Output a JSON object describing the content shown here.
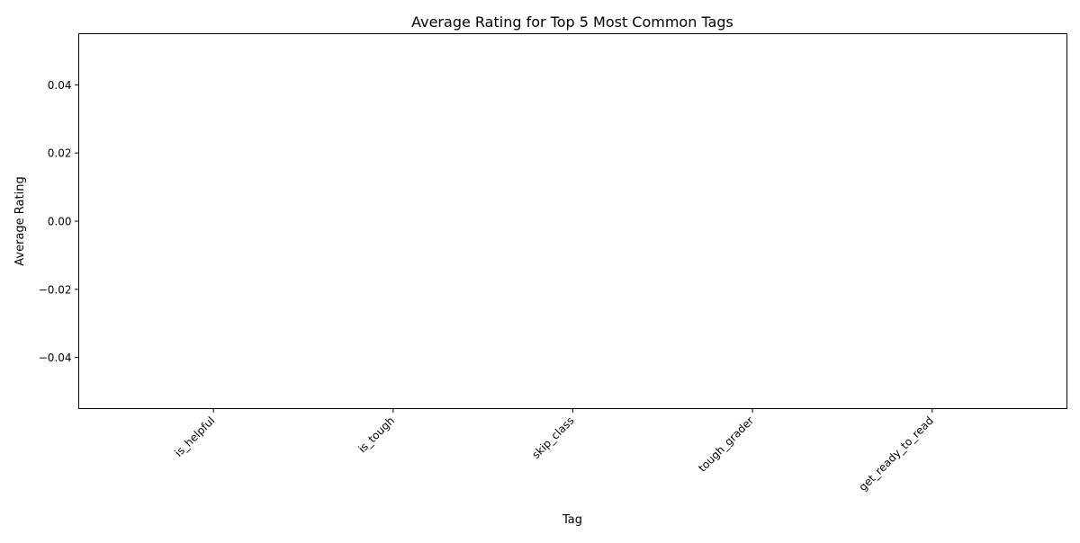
{
  "chart_data": {
    "type": "bar",
    "title": "Average Rating for Top 5 Most Common Tags",
    "xlabel": "Tag",
    "ylabel": "Average Rating",
    "categories": [
      "is_helpful",
      "is_tough",
      "skip_class",
      "tough_grader",
      "get_ready_to_read"
    ],
    "values": [
      null,
      null,
      null,
      null,
      null
    ],
    "ylim": [
      -0.055,
      0.055
    ],
    "yticks": [
      -0.04,
      -0.02,
      0.0,
      0.02,
      0.04
    ],
    "ytick_labels": [
      "−0.04",
      "−0.02",
      "0.00",
      "0.02",
      "0.04"
    ],
    "grid": false,
    "bar_color": "#1f77b4"
  }
}
